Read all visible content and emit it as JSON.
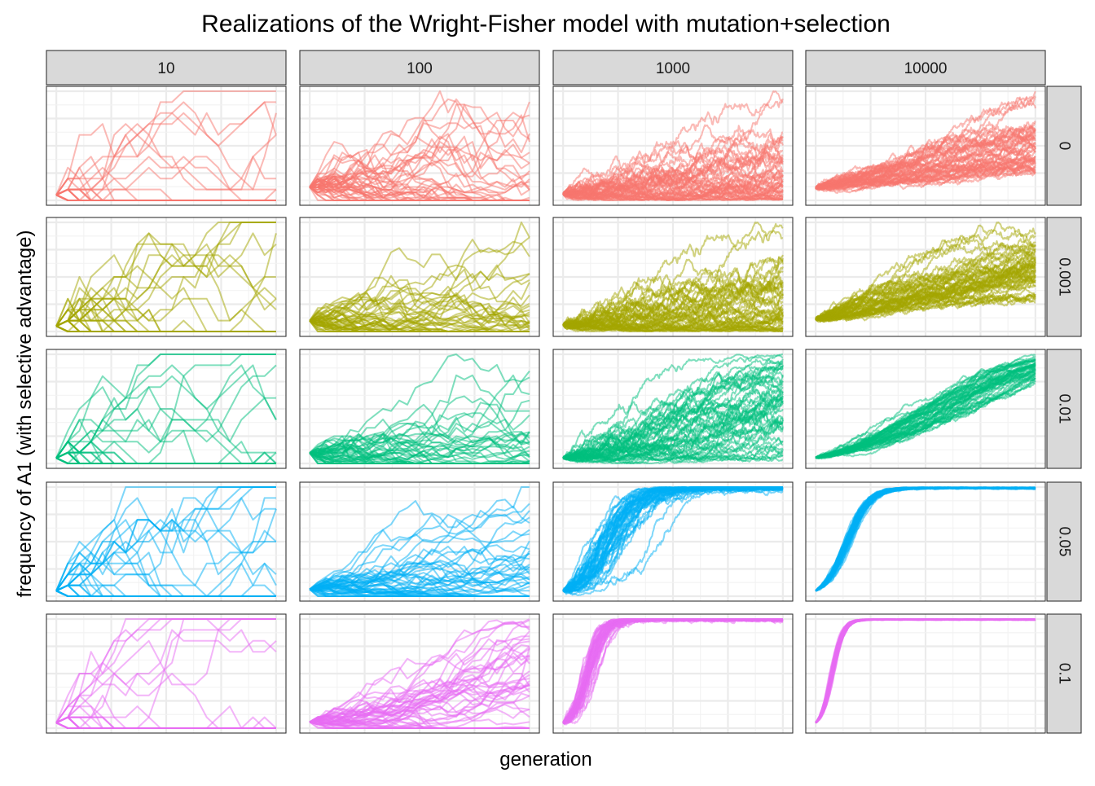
{
  "title": "Realizations of the Wright-Fisher model with mutation+selection",
  "chart_data": {
    "type": "line",
    "title": "Realizations of the Wright-Fisher model with mutation+selection",
    "xlabel": "generation",
    "ylabel": "frequency of A1 (with selective advantage)",
    "facet_columns": [
      "10",
      "100",
      "1000",
      "10000"
    ],
    "facet_rows": [
      "0",
      "0.001",
      "0.01",
      "0.05",
      "0.1"
    ],
    "colors": {
      "0": "#F8766D",
      "0.001": "#A3A500",
      "0.01": "#00BF7D",
      "0.05": "#00B0F6",
      "0.1": "#E76BF3"
    },
    "scales": "free",
    "grid": true,
    "line_alpha": 0.5,
    "series_per_panel": 50
  }
}
